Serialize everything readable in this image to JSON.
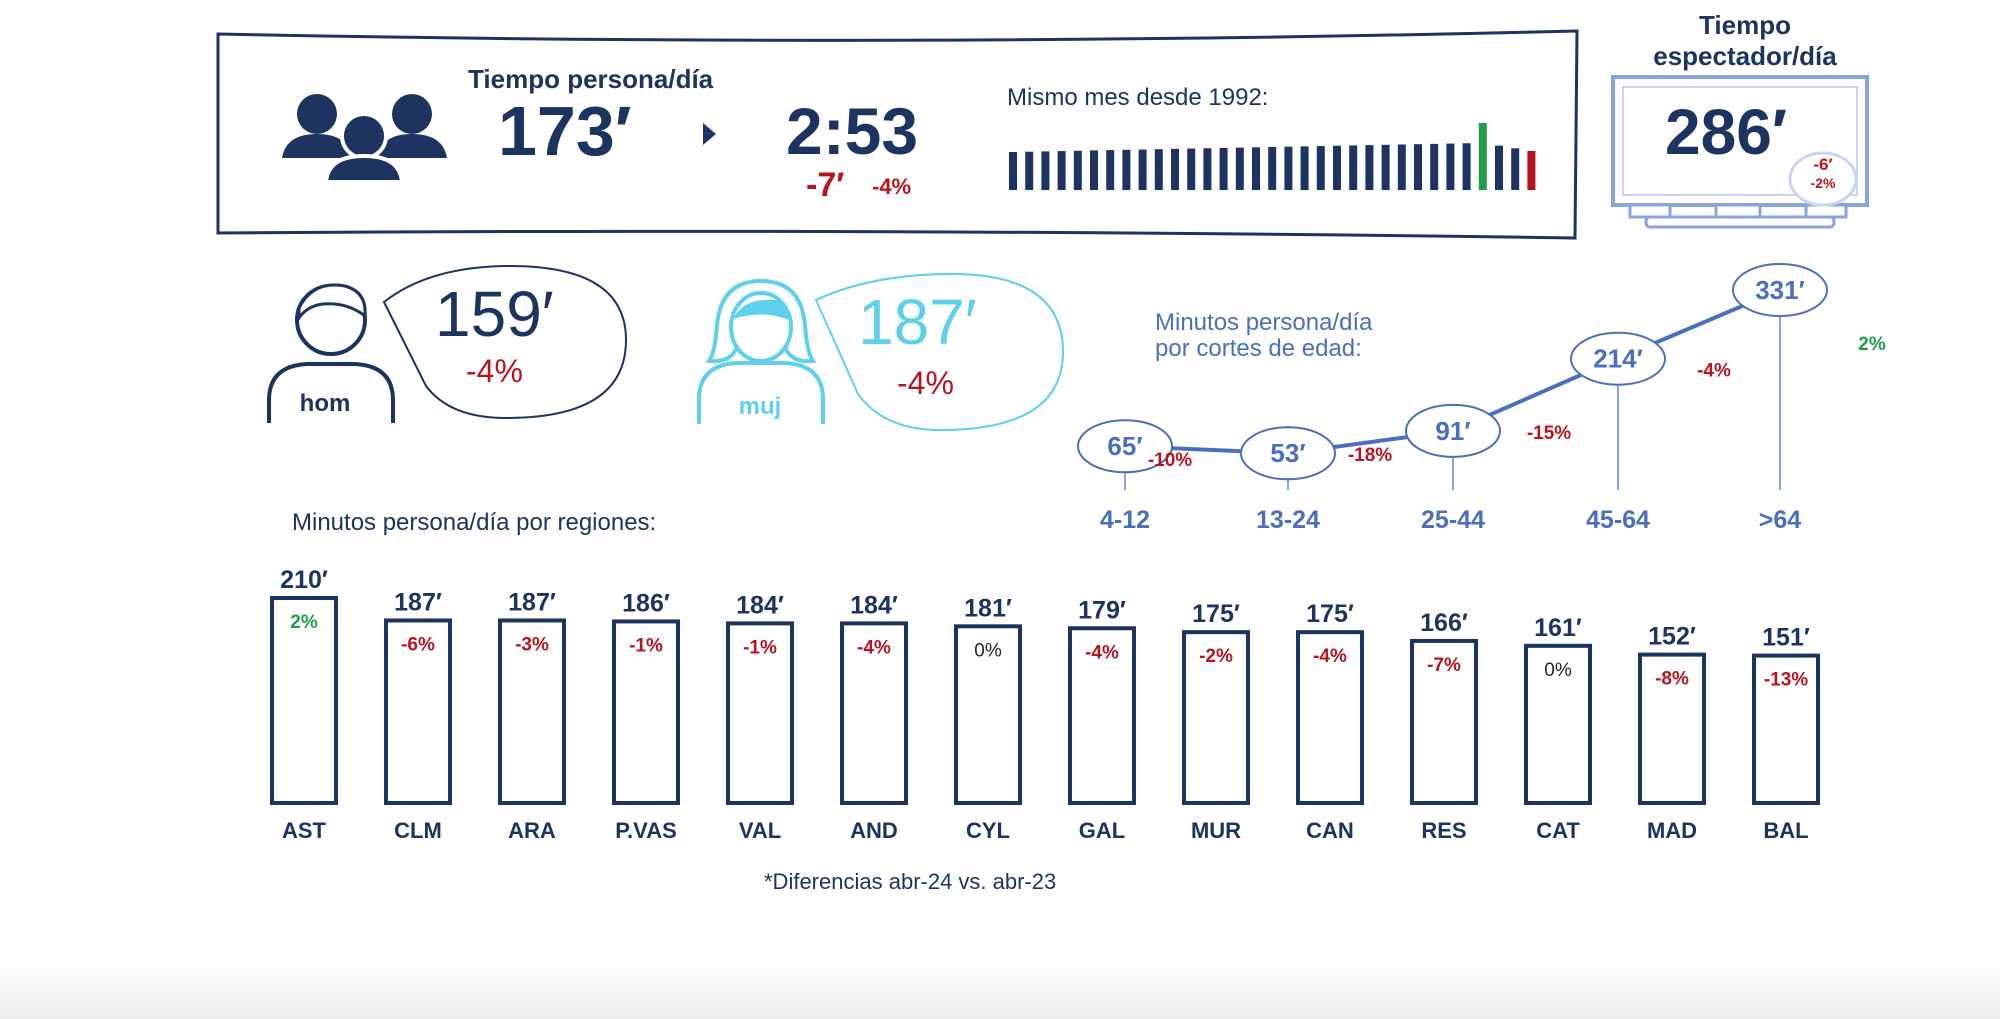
{
  "header": {
    "title": "Tiempo persona/día",
    "minutes": "173′",
    "hours": "2:53",
    "diff_min": "-7′",
    "diff_pct": "-4%",
    "history_label": "Mismo mes desde 1992:"
  },
  "history_chart": {
    "type": "bar",
    "bar_count": 33,
    "highlight": {
      "max_index": 29,
      "last_index": 32
    },
    "colors": {
      "normal": "#1d3461",
      "max": "#1e9e4a",
      "last": "#b8141f"
    }
  },
  "spectator": {
    "title_line1": "Tiempo",
    "title_line2": "espectador/día",
    "minutes": "286′",
    "diff_min": "-6′",
    "diff_pct": "-2%"
  },
  "gender": {
    "men": {
      "label": "hom",
      "value": "159′",
      "pct": "-4%"
    },
    "women": {
      "label": "muj",
      "value": "187′",
      "pct": "-4%"
    }
  },
  "chart_data": [
    {
      "type": "line",
      "title": "Minutos persona/día por cortes de edad:",
      "title_line1": "Minutos persona/día",
      "title_line2": "por cortes de edad:",
      "categories": [
        "4-12",
        "13-24",
        "25-44",
        "45-64",
        ">64"
      ],
      "values": [
        65,
        53,
        91,
        214,
        331
      ],
      "value_labels": [
        "65′",
        "53′",
        "91′",
        "214′",
        "331′"
      ],
      "diffs": [
        "-10%",
        "-18%",
        "-15%",
        "-4%",
        "2%"
      ],
      "ylim": [
        0,
        340
      ],
      "colors": {
        "line": "#4a6fbf",
        "negative": "#b8141f",
        "positive": "#1e9e4a"
      }
    },
    {
      "type": "bar",
      "title": "Minutos persona/día por regiones:",
      "categories": [
        "AST",
        "CLM",
        "ARA",
        "P.VAS",
        "VAL",
        "AND",
        "CYL",
        "GAL",
        "MUR",
        "CAN",
        "RES",
        "CAT",
        "MAD",
        "BAL"
      ],
      "values": [
        210,
        187,
        187,
        186,
        184,
        184,
        181,
        179,
        175,
        175,
        166,
        161,
        152,
        151
      ],
      "value_labels": [
        "210′",
        "187′",
        "187′",
        "186′",
        "184′",
        "184′",
        "181′",
        "179′",
        "175′",
        "175′",
        "166′",
        "161′",
        "152′",
        "151′"
      ],
      "diffs": [
        "2%",
        "-6%",
        "-3%",
        "-1%",
        "-1%",
        "-4%",
        "0%",
        "-4%",
        "-2%",
        "-4%",
        "-7%",
        "0%",
        "-8%",
        "-13%"
      ],
      "colors": {
        "bar_outline": "#1d3461",
        "negative": "#b8141f",
        "positive": "#1e9e4a",
        "neutral": "#222222"
      }
    }
  ],
  "footnote": "*Diferencias abr-24 vs. abr-23"
}
